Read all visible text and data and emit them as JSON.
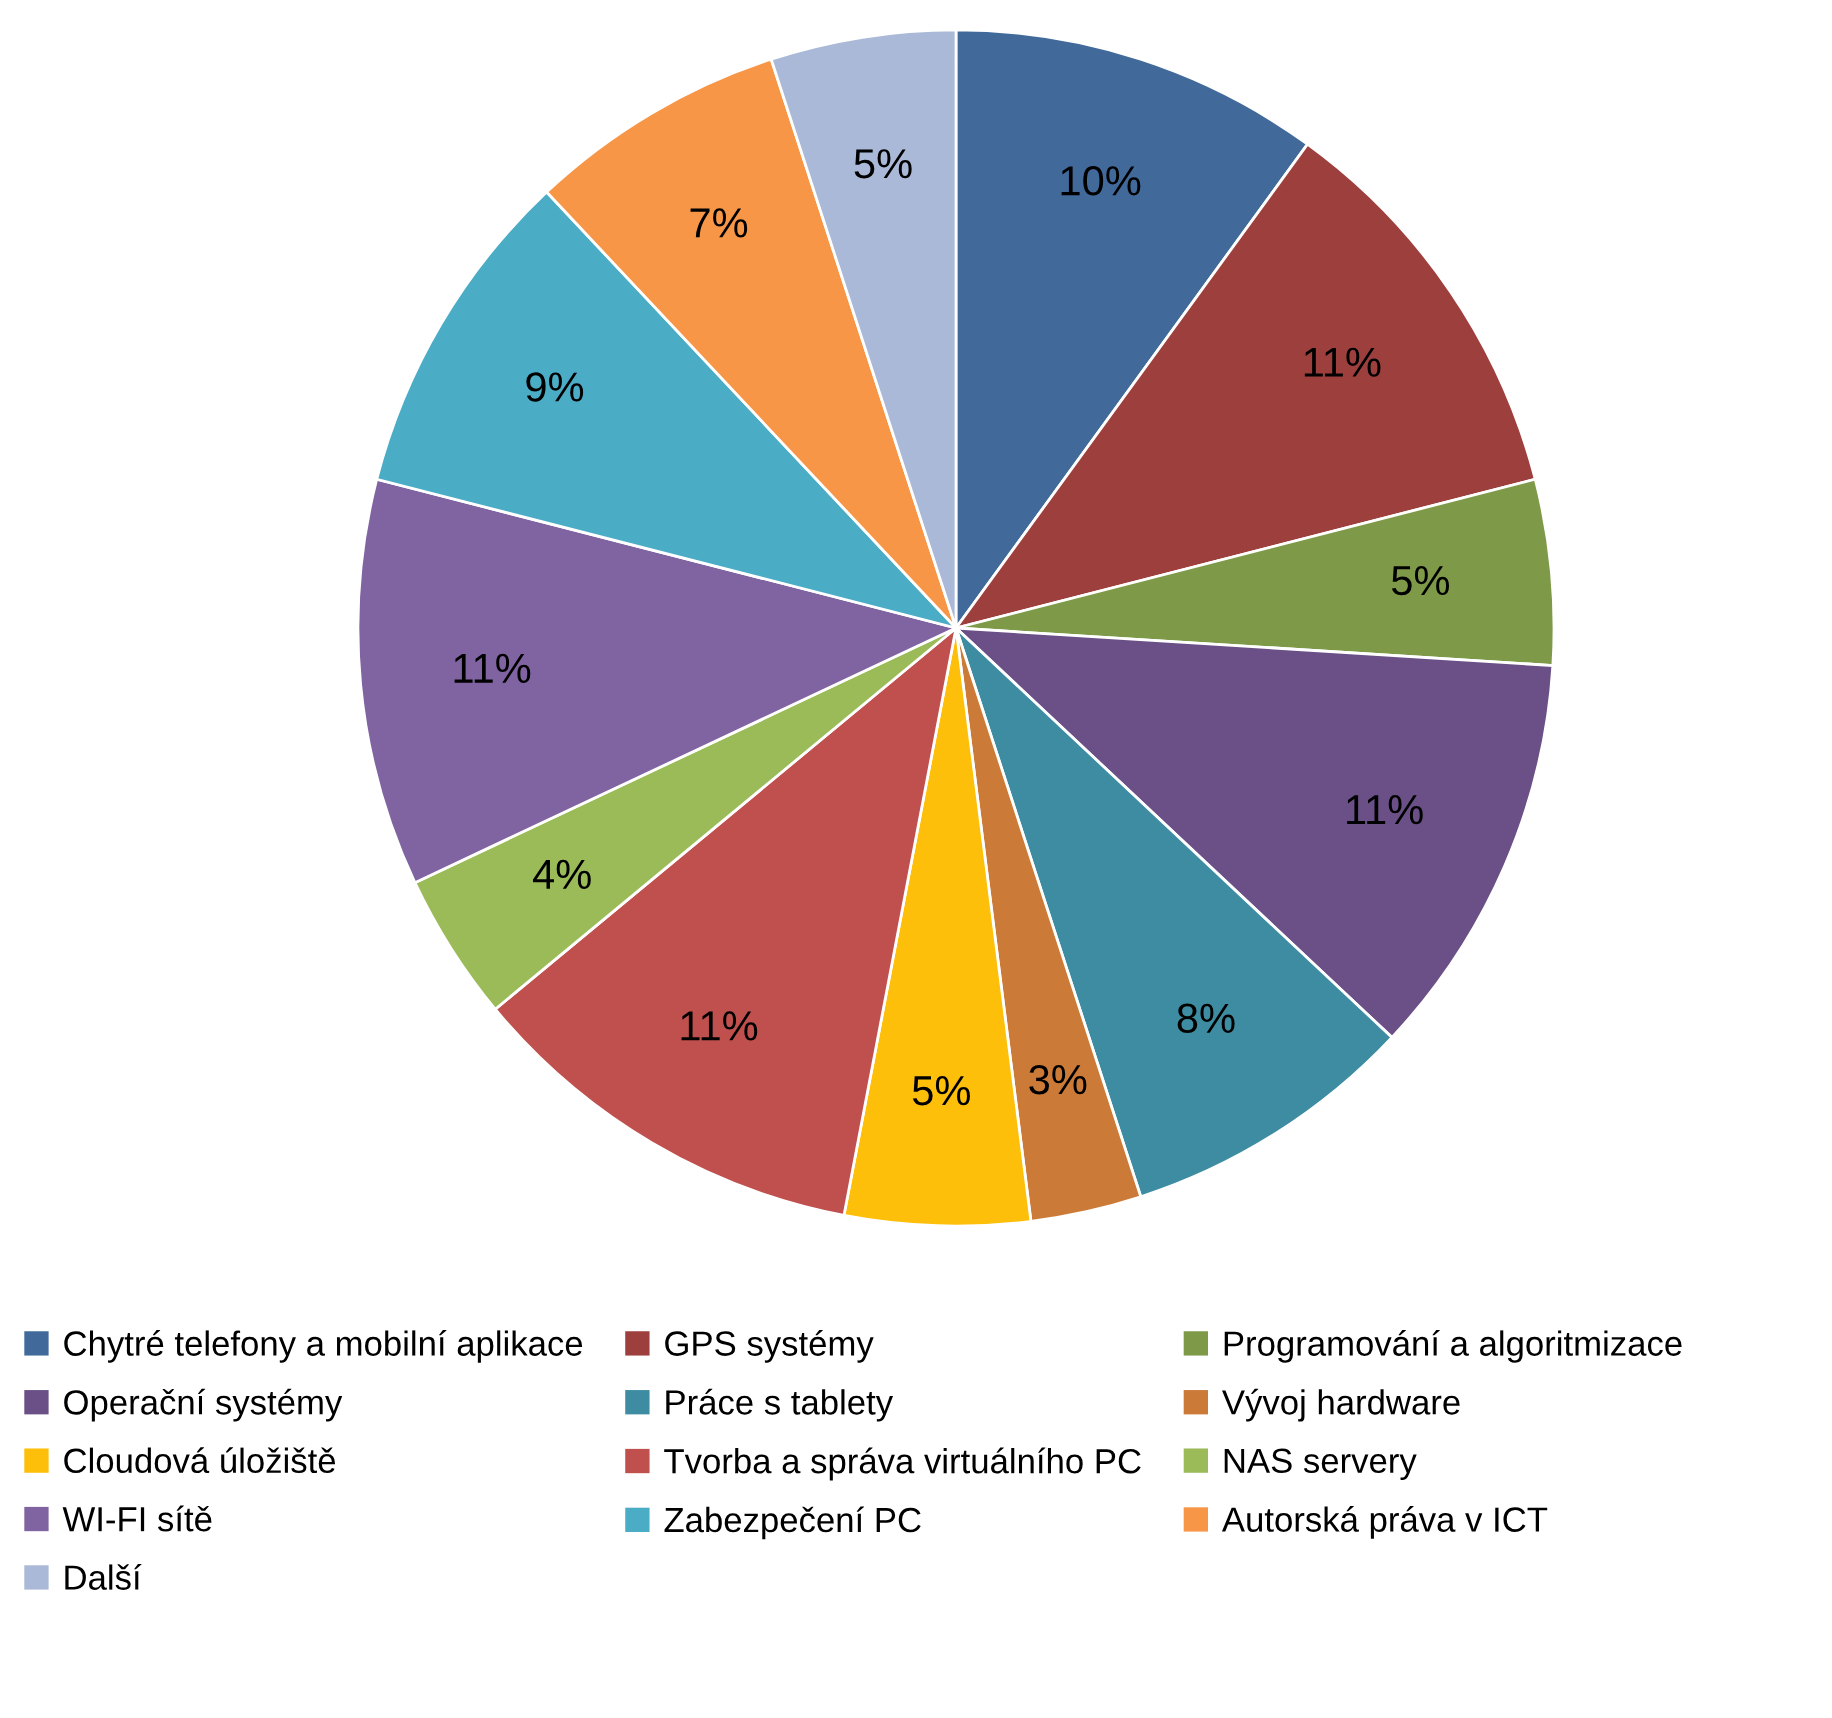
{
  "chart_data": {
    "type": "pie",
    "categories": [
      "Chytré telefony a mobilní aplikace",
      "GPS systémy",
      "Programování a algoritmizace",
      "Operační systémy",
      "Práce s tablety",
      "Vývoj hardware",
      "Cloudová úložiště",
      "Tvorba a správa virtuálního PC",
      "NAS servery",
      "WI-FI sítě",
      "Zabezpečení PC",
      "Autorská práva v ICT",
      "Další"
    ],
    "values": [
      10,
      11,
      5,
      11,
      8,
      3,
      5,
      11,
      4,
      11,
      9,
      7,
      5
    ],
    "colors": [
      "#416a9b",
      "#9d403d",
      "#7e9a48",
      "#6a5086",
      "#3d8ca2",
      "#cb7a37",
      "#fdbf09",
      "#c0504d",
      "#9bbb59",
      "#8064a2",
      "#4bacc6",
      "#f79646",
      "#a9b9d7"
    ],
    "value_labels": [
      "10%",
      "11%",
      "5%",
      "11%",
      "8%",
      "3%",
      "5%",
      "11%",
      "4%",
      "11%",
      "9%",
      "7%",
      "5%"
    ],
    "legend": "bottom"
  }
}
